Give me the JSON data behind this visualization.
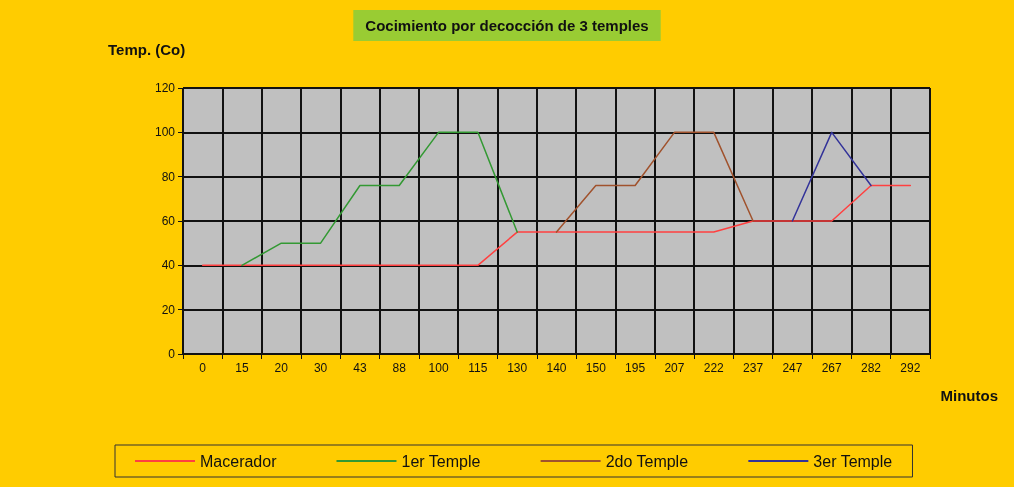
{
  "chart_data": {
    "type": "line",
    "title": "Cocimiento por decocción de 3 temples",
    "xlabel": "Minutos",
    "ylabel": "Temp. (Co)",
    "categories": [
      "0",
      "15",
      "20",
      "30",
      "43",
      "88",
      "100",
      "115",
      "130",
      "140",
      "150",
      "195",
      "207",
      "222",
      "237",
      "247",
      "267",
      "282",
      "292"
    ],
    "series": [
      {
        "name": "Macerador",
        "color": "#ff4040",
        "values": [
          40,
          40,
          40,
          40,
          40,
          40,
          40,
          40,
          55,
          55,
          55,
          55,
          55,
          55,
          60,
          60,
          60,
          76,
          76
        ]
      },
      {
        "name": "1er Temple",
        "color": "#339933",
        "values": [
          null,
          40,
          50,
          50,
          76,
          76,
          100,
          100,
          55,
          null,
          null,
          null,
          null,
          null,
          null,
          null,
          null,
          null,
          null
        ]
      },
      {
        "name": "2do Temple",
        "color": "#a0522d",
        "values": [
          null,
          null,
          null,
          null,
          null,
          null,
          null,
          null,
          null,
          55,
          76,
          76,
          100,
          100,
          60,
          null,
          null,
          null,
          null
        ]
      },
      {
        "name": "3er Temple",
        "color": "#333399",
        "values": [
          null,
          null,
          null,
          null,
          null,
          null,
          null,
          null,
          null,
          null,
          null,
          null,
          null,
          null,
          null,
          60,
          100,
          76,
          null
        ]
      }
    ],
    "ylim": [
      0,
      120
    ],
    "yticks": [
      0,
      20,
      40,
      60,
      80,
      100,
      120
    ],
    "grid": true,
    "legend": "bottom",
    "marker": "none",
    "line_style": "solid"
  }
}
